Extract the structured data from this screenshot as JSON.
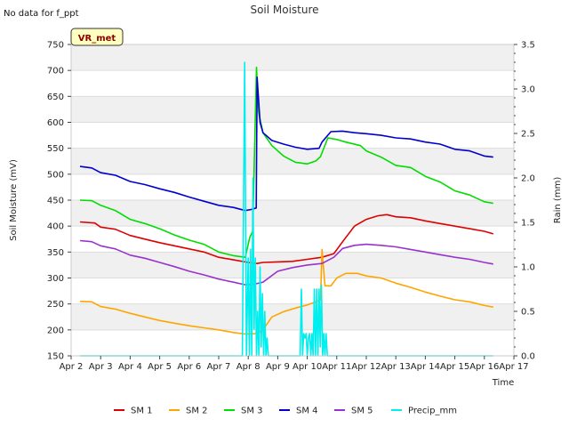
{
  "chart_data": {
    "type": "line",
    "title": "Soil Moisture",
    "note": "No data for f_ppt",
    "badge": "VR_met",
    "xlabel": "Time",
    "ylabel": "Soil Moisture (mV)",
    "y2label": "Rain (mm)",
    "xlim": [
      2,
      17
    ],
    "ylim": [
      150,
      750
    ],
    "y2lim": [
      0,
      3.5
    ],
    "x_ticks": [
      2,
      3,
      4,
      5,
      6,
      7,
      8,
      9,
      10,
      11,
      12,
      13,
      14,
      15,
      16,
      17
    ],
    "x_tick_labels": [
      "Apr 2",
      "Apr 3",
      "Apr 4",
      "Apr 5",
      "Apr 6",
      "Apr 7",
      "Apr 8",
      "Apr 9",
      "Apr 10",
      "Apr 11",
      "Apr 12",
      "Apr 13",
      "Apr 14",
      "Apr 15",
      "Apr 16",
      "Apr 17"
    ],
    "y_ticks": [
      150,
      200,
      250,
      300,
      350,
      400,
      450,
      500,
      550,
      600,
      650,
      700,
      750
    ],
    "y2_ticks": [
      0.0,
      0.5,
      1.0,
      1.5,
      2.0,
      2.5,
      3.0,
      3.5
    ],
    "y2_tick_labels": [
      "0.0",
      "0.5",
      "1.0",
      "1.5",
      "2.0",
      "2.5",
      "3.0",
      "3.5"
    ],
    "series": [
      {
        "name": "SM 1",
        "color": "#dd0000",
        "axis": "left",
        "x": [
          2.3,
          2.8,
          3,
          3.5,
          4,
          4.5,
          5,
          5.5,
          6,
          6.5,
          7,
          7.5,
          8,
          8.3,
          8.5,
          9,
          9.5,
          10,
          10.5,
          10.9,
          11.2,
          11.6,
          12,
          12.4,
          12.7,
          13,
          13.5,
          14,
          14.5,
          15,
          15.5,
          16,
          16.3
        ],
        "y": [
          408,
          406,
          398,
          394,
          382,
          375,
          368,
          362,
          356,
          350,
          340,
          335,
          330,
          328,
          330,
          331,
          332,
          336,
          340,
          347,
          370,
          400,
          413,
          420,
          422,
          418,
          416,
          410,
          405,
          400,
          395,
          390,
          385
        ]
      },
      {
        "name": "SM 2",
        "color": "#ffa500",
        "axis": "left",
        "x": [
          2.3,
          2.7,
          3,
          3.5,
          4,
          4.5,
          5,
          5.5,
          6,
          6.5,
          7,
          7.5,
          7.9,
          8.3,
          8.5,
          8.8,
          9.2,
          9.6,
          10,
          10.3,
          10.45,
          10.5,
          10.6,
          10.8,
          11,
          11.3,
          11.7,
          12,
          12.5,
          13,
          13.5,
          14,
          14.5,
          15,
          15.5,
          16,
          16.3
        ],
        "y": [
          255,
          254,
          245,
          240,
          232,
          225,
          218,
          213,
          208,
          204,
          200,
          195,
          192,
          193,
          200,
          225,
          235,
          242,
          248,
          254,
          258,
          355,
          285,
          285,
          300,
          309,
          309,
          304,
          300,
          290,
          282,
          273,
          265,
          258,
          254,
          247,
          244
        ]
      },
      {
        "name": "SM 3",
        "color": "#00dd00",
        "axis": "left",
        "x": [
          2.3,
          2.7,
          3,
          3.5,
          4,
          4.5,
          5,
          5.5,
          6,
          6.5,
          7,
          7.5,
          7.9,
          8.05,
          8.15,
          8.28,
          8.35,
          8.5,
          8.8,
          9.2,
          9.6,
          10,
          10.3,
          10.45,
          10.7,
          11,
          11.3,
          11.8,
          12,
          12.5,
          13,
          13.5,
          14,
          14.5,
          15,
          15.5,
          16,
          16.3
        ],
        "y": [
          450,
          449,
          440,
          430,
          413,
          405,
          395,
          383,
          373,
          365,
          350,
          343,
          340,
          378,
          390,
          706,
          620,
          580,
          555,
          535,
          523,
          520,
          526,
          534,
          570,
          567,
          562,
          555,
          545,
          533,
          517,
          513,
          496,
          485,
          468,
          460,
          447,
          444
        ]
      },
      {
        "name": "SM 4",
        "color": "#0000cc",
        "axis": "left",
        "x": [
          2.3,
          2.7,
          3,
          3.5,
          4,
          4.5,
          5,
          5.5,
          6,
          6.5,
          7,
          7.5,
          7.9,
          8.1,
          8.27,
          8.3,
          8.4,
          8.5,
          8.8,
          9.2,
          9.6,
          10,
          10.4,
          10.5,
          10.8,
          11.2,
          11.6,
          12,
          12.5,
          13,
          13.5,
          14,
          14.5,
          15,
          15.5,
          16,
          16.3
        ],
        "y": [
          515,
          512,
          503,
          498,
          486,
          480,
          472,
          465,
          456,
          448,
          440,
          436,
          430,
          432,
          435,
          687,
          600,
          580,
          565,
          558,
          552,
          548,
          550,
          562,
          582,
          583,
          580,
          578,
          575,
          570,
          568,
          562,
          558,
          548,
          545,
          535,
          533
        ]
      },
      {
        "name": "SM 5",
        "color": "#9932cc",
        "axis": "left",
        "x": [
          2.3,
          2.7,
          3,
          3.5,
          4,
          4.5,
          5,
          5.5,
          6,
          6.5,
          7,
          7.5,
          7.9,
          8.2,
          8.5,
          9,
          9.5,
          10,
          10.5,
          10.9,
          11.2,
          11.6,
          12,
          12.5,
          13,
          13.5,
          14,
          14.5,
          15,
          15.5,
          16,
          16.3
        ],
        "y": [
          372,
          370,
          362,
          356,
          344,
          338,
          330,
          322,
          313,
          306,
          298,
          292,
          287,
          288,
          292,
          313,
          320,
          325,
          328,
          340,
          357,
          363,
          365,
          363,
          360,
          355,
          350,
          345,
          340,
          336,
          330,
          327
        ]
      },
      {
        "name": "Precip_mm",
        "color": "#00eeee",
        "axis": "right",
        "x": [
          2.3,
          7.8,
          7.88,
          7.94,
          8.0,
          8.04,
          8.08,
          8.12,
          8.16,
          8.2,
          8.24,
          8.28,
          8.32,
          8.36,
          8.4,
          8.44,
          8.48,
          8.52,
          8.56,
          8.6,
          8.64,
          8.68,
          8.72,
          9.5,
          9.76,
          9.8,
          9.84,
          9.88,
          9.92,
          9.96,
          10.0,
          10.04,
          10.08,
          10.12,
          10.16,
          10.2,
          10.24,
          10.28,
          10.32,
          10.36,
          10.4,
          10.44,
          10.48,
          10.52,
          10.56,
          10.6,
          10.64,
          10.68,
          10.72,
          16.3
        ],
        "y": [
          0,
          0,
          3.3,
          0,
          1.1,
          0,
          1.2,
          0,
          2.0,
          0.3,
          1.1,
          0,
          0.5,
          0,
          1.0,
          0.1,
          0.7,
          0,
          0.5,
          0,
          0.2,
          0,
          0,
          0,
          0,
          0.75,
          0,
          0.25,
          0.2,
          0.25,
          0,
          0.2,
          0.25,
          0,
          0.25,
          0,
          0.75,
          0,
          0.75,
          0,
          0.75,
          0.1,
          0.8,
          0,
          0.25,
          0,
          0.25,
          0,
          0,
          0
        ]
      }
    ]
  }
}
